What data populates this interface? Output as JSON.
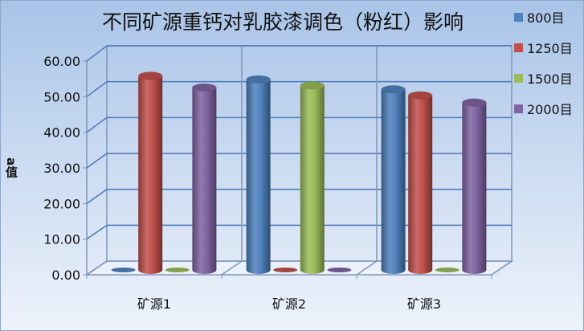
{
  "chart_data": {
    "type": "bar",
    "title": "不同矿源重钙对乳胶漆调色（粉红）影响",
    "ylabel": "a值",
    "xlabel": "",
    "categories": [
      "矿源1",
      "矿源2",
      "矿源3"
    ],
    "ylim": [
      0,
      60
    ],
    "yticks": [
      "0.00",
      "10.00",
      "20.00",
      "30.00",
      "40.00",
      "50.00",
      "60.00"
    ],
    "grid": true,
    "legend_position": "right",
    "series": [
      {
        "name": "800目",
        "color": "#4F81BD",
        "values": [
          0,
          53.5,
          50.7
        ]
      },
      {
        "name": "1250目",
        "color": "#C0504D",
        "values": [
          54.5,
          0,
          49.0
        ]
      },
      {
        "name": "1500目",
        "color": "#9BBB59",
        "values": [
          0,
          51.8,
          0
        ]
      },
      {
        "name": "2000目",
        "color": "#8064A2",
        "values": [
          51.2,
          0,
          47.0
        ]
      }
    ]
  }
}
